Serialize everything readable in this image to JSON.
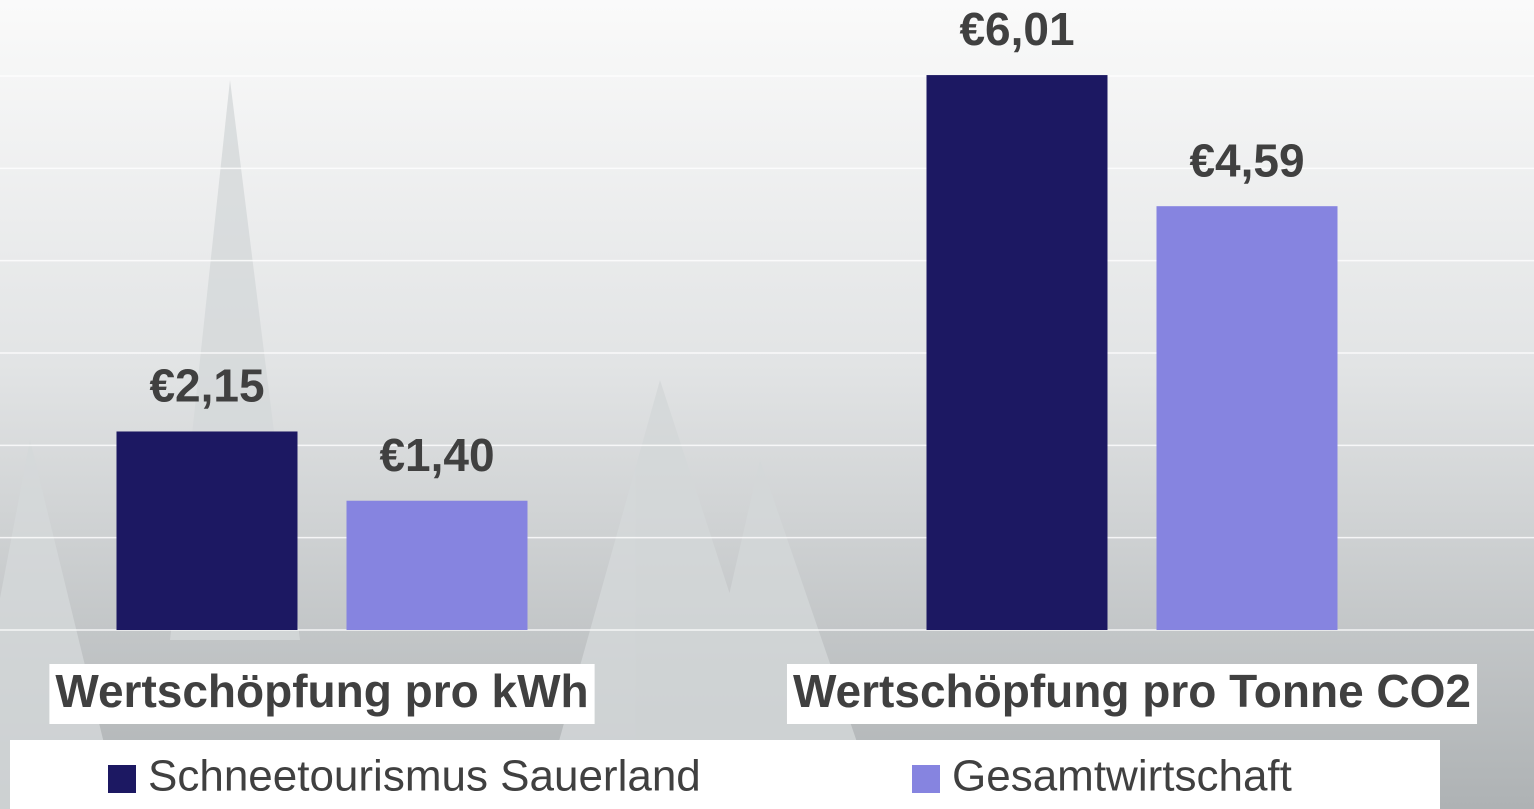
{
  "chart_data": {
    "type": "bar",
    "categories": [
      "Wertschöpfung pro kWh",
      "Wertschöpfung pro Tonne CO2"
    ],
    "series": [
      {
        "name": "Schneetourismus Sauerland",
        "color": "#1c1862",
        "values": [
          2.15,
          6.01
        ],
        "value_labels": [
          "€2,15",
          "€6,01"
        ]
      },
      {
        "name": "Gesamtwirtschaft",
        "color": "#8684e0",
        "values": [
          1.4,
          4.59
        ],
        "value_labels": [
          "€1,40",
          "€4,59"
        ]
      }
    ],
    "ylim": [
      0,
      6
    ],
    "yticks": [
      0,
      1,
      2,
      3,
      4,
      5,
      6
    ],
    "grid": true
  }
}
